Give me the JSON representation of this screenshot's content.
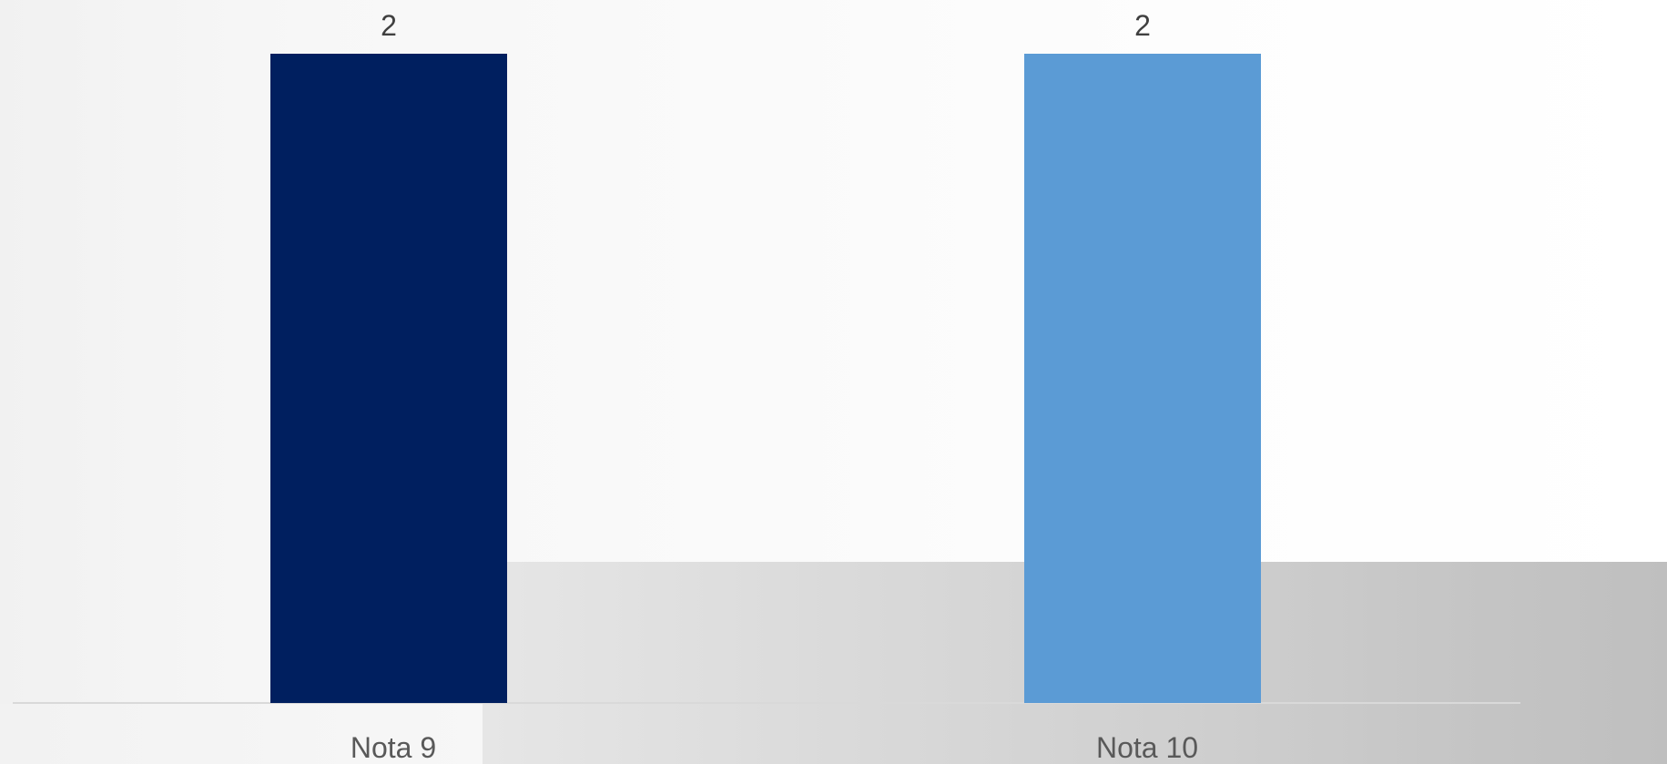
{
  "chart_data": {
    "type": "bar",
    "categories": [
      "Nota 9",
      "Nota 10"
    ],
    "values": [
      2,
      2
    ],
    "data_labels": [
      "2",
      "2"
    ],
    "colors": [
      "#001f5f",
      "#5b9bd5"
    ],
    "ylim": [
      0,
      2
    ],
    "title": "",
    "xlabel": "",
    "ylabel": "",
    "grid": false,
    "legend": "none"
  }
}
